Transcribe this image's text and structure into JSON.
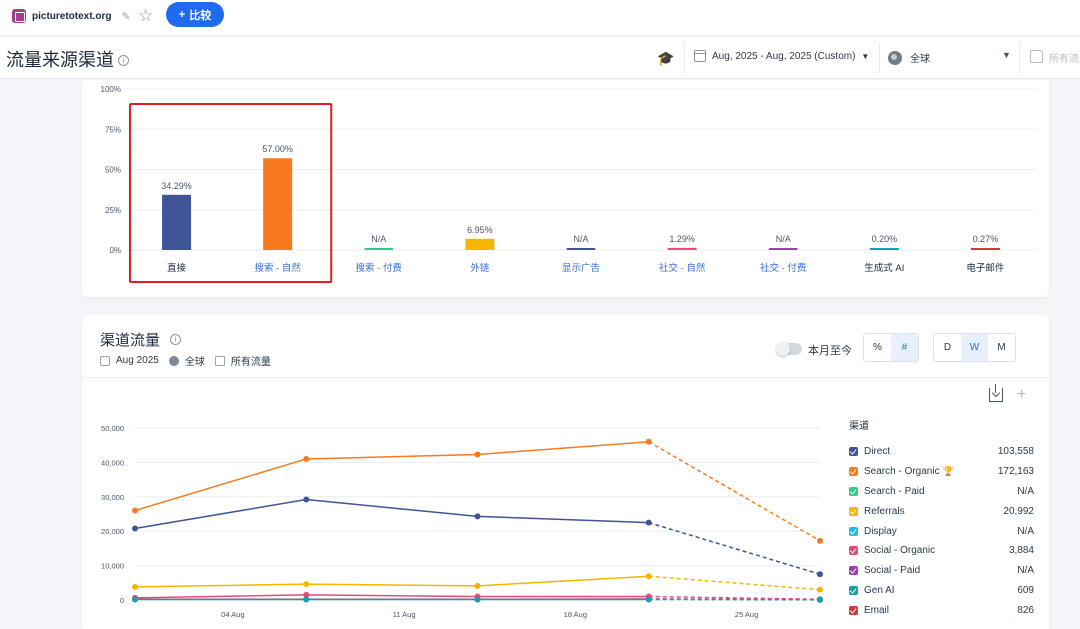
{
  "topbar": {
    "site": "picturetotext.org",
    "compare_label": "比较"
  },
  "header": {
    "title": "流量来源渠道",
    "date_range": "Aug, 2025 - Aug, 2025 (Custom)",
    "region": "全球",
    "traffic_filter": "所有流"
  },
  "colors": {
    "direct": "#3f5597",
    "search_organic": "#f77a1f",
    "search_paid": "#2fca88",
    "referrals": "#f7b500",
    "display": "#20bbe0",
    "social_organic": "#e84a78",
    "social_paid": "#a53cb4",
    "gen_ai": "#13a1b1",
    "email": "#cf3a3a",
    "highlight": "#e02020",
    "accent": "#1e6bf0"
  },
  "channel_chart": {
    "title": "",
    "type": "bar",
    "ylim": [
      0,
      100
    ],
    "y_ticks": [
      "0%",
      "25%",
      "50%",
      "75%",
      "100%"
    ],
    "categories": [
      "直接",
      "搜索 - 自然",
      "搜索 - 付费",
      "外链",
      "显示广告",
      "社交 - 自然",
      "社交 - 付费",
      "生成式 AI",
      "电子邮件"
    ],
    "values": [
      34.29,
      57.0,
      null,
      6.95,
      null,
      1.29,
      null,
      0.2,
      0.27
    ],
    "value_labels": [
      "34.29%",
      "57.00%",
      "N/A",
      "6.95%",
      "N/A",
      "1.29%",
      "N/A",
      "0.20%",
      "0.27%"
    ],
    "bar_colors": [
      "#3f5597",
      "#f77a1f",
      "#2fca88",
      "#f7b500",
      "#3f5597",
      "#e84a78",
      "#a53cb4",
      "#13a1b1",
      "#cf3a3a"
    ],
    "label_colors": [
      "#1c2a3a",
      "#3a6fd8",
      "#3a6fd8",
      "#3a6fd8",
      "#3a6fd8",
      "#3a6fd8",
      "#3a6fd8",
      "#1c2a3a",
      "#1c2a3a"
    ],
    "highlight_range": [
      0,
      1
    ]
  },
  "channel_traffic": {
    "title": "渠道流量",
    "period": "Aug 2025",
    "region": "全球",
    "traffic": "所有流量",
    "toggle_label": "本月至今",
    "unit_options": [
      "%",
      "#"
    ],
    "unit_selected": "#",
    "granularity_options": [
      "D",
      "W",
      "M"
    ],
    "granularity_selected": "W",
    "legend_title": "渠道",
    "legend": [
      {
        "name": "Direct",
        "value": "103,558",
        "color": "#3f5597"
      },
      {
        "name": "Search - Organic",
        "value": "172,163",
        "color": "#f77a1f",
        "trophy": true
      },
      {
        "name": "Search - Paid",
        "value": "N/A",
        "color": "#2fca88"
      },
      {
        "name": "Referrals",
        "value": "20,992",
        "color": "#f7b500"
      },
      {
        "name": "Display",
        "value": "N/A",
        "color": "#20bbe0"
      },
      {
        "name": "Social - Organic",
        "value": "3,884",
        "color": "#e84a78"
      },
      {
        "name": "Social - Paid",
        "value": "N/A",
        "color": "#a53cb4"
      },
      {
        "name": "Gen AI",
        "value": "609",
        "color": "#13a1b1"
      },
      {
        "name": "Email",
        "value": "826",
        "color": "#cf3a3a"
      }
    ]
  },
  "chart_data": {
    "type": "line",
    "x": [
      "Jul 31",
      "Aug 07",
      "Aug 14",
      "Aug 21",
      "Aug 28"
    ],
    "x_tick_labels": [
      "04 Aug",
      "11 Aug",
      "18 Aug",
      "25 Aug"
    ],
    "ylim": [
      0,
      50000
    ],
    "y_ticks": [
      "0",
      "10,000",
      "20,000",
      "30,000",
      "40,000",
      "50,000"
    ],
    "dashed_last_segment": true,
    "series": [
      {
        "name": "Search - Organic",
        "color": "#f77a1f",
        "values": [
          26000,
          41000,
          42300,
          46000,
          17200
        ]
      },
      {
        "name": "Direct",
        "color": "#3f5597",
        "values": [
          20800,
          29200,
          24300,
          22500,
          7500
        ]
      },
      {
        "name": "Referrals",
        "color": "#f7b500",
        "values": [
          3800,
          4600,
          4100,
          6900,
          3000
        ]
      },
      {
        "name": "Social - Organic",
        "color": "#e84a78",
        "values": [
          600,
          1500,
          1000,
          1000,
          200
        ]
      },
      {
        "name": "Email",
        "color": "#cf3a3a",
        "values": [
          200,
          200,
          200,
          300,
          100
        ]
      },
      {
        "name": "Gen AI",
        "color": "#13a1b1",
        "values": [
          150,
          150,
          150,
          150,
          50
        ]
      }
    ]
  }
}
